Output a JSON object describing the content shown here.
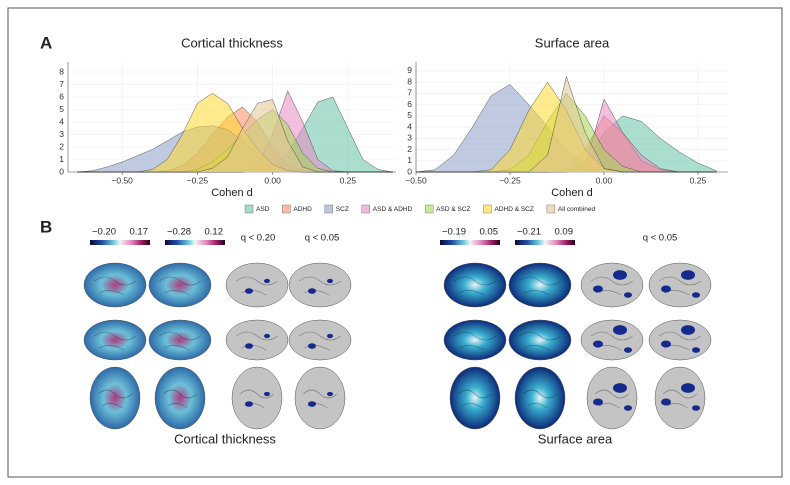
{
  "panel_labels": [
    "A",
    "B"
  ],
  "chart_data": [
    {
      "type": "area",
      "title": "Cortical thickness",
      "xlabel": "Cohen d",
      "x": [
        -0.65,
        -0.6,
        -0.55,
        -0.5,
        -0.45,
        -0.4,
        -0.35,
        -0.3,
        -0.25,
        -0.2,
        -0.15,
        -0.1,
        -0.05,
        0,
        0.05,
        0.1,
        0.15,
        0.2,
        0.25,
        0.3,
        0.35,
        0.4
      ],
      "xlim": [
        -0.68,
        0.41
      ],
      "xticks": [
        {
          "value": -0.5,
          "label": "−0.50"
        },
        {
          "value": -0.25,
          "label": "−0.25"
        },
        {
          "value": 0,
          "label": "0.00"
        },
        {
          "value": 0.25,
          "label": "0.25"
        }
      ],
      "ylim": [
        0,
        8.8
      ],
      "yticks": [
        0,
        1,
        2,
        3,
        4,
        5,
        6,
        7,
        8
      ],
      "grid": true,
      "series": [
        {
          "name": "ASD",
          "color": "#66c2a5",
          "values": [
            0,
            0,
            0,
            0,
            0,
            0,
            0,
            0,
            0,
            0,
            0,
            0,
            0.1,
            0.4,
            1.5,
            3.5,
            5.6,
            6.0,
            3.5,
            1.0,
            0.2,
            0
          ]
        },
        {
          "name": "ADHD",
          "color": "#fc8d62",
          "values": [
            0,
            0,
            0,
            0,
            0,
            0,
            0.1,
            0.5,
            1.5,
            3.0,
            4.4,
            5.2,
            4.0,
            2.0,
            0.5,
            0.1,
            0,
            0,
            0,
            0,
            0,
            0
          ]
        },
        {
          "name": "SCZ",
          "color": "#8da0cb",
          "values": [
            0,
            0.1,
            0.4,
            0.8,
            1.3,
            1.8,
            2.5,
            3.2,
            3.6,
            3.7,
            3.4,
            2.5,
            1.5,
            0.6,
            0.2,
            0,
            0,
            0,
            0,
            0,
            0,
            0
          ]
        },
        {
          "name": "ASD & ADHD",
          "color": "#e78ac3",
          "values": [
            0,
            0,
            0,
            0,
            0,
            0,
            0,
            0,
            0,
            0,
            0,
            0,
            0.5,
            3.0,
            6.5,
            4.0,
            1.0,
            0.1,
            0,
            0,
            0,
            0
          ]
        },
        {
          "name": "ASD & SCZ",
          "color": "#a6d854",
          "values": [
            0,
            0,
            0,
            0,
            0,
            0,
            0,
            0,
            0.2,
            0.8,
            1.8,
            3.0,
            4.2,
            5.0,
            3.8,
            1.5,
            0.3,
            0,
            0,
            0,
            0,
            0
          ]
        },
        {
          "name": "ADHD & SCZ",
          "color": "#ffd92f",
          "values": [
            0,
            0,
            0,
            0,
            0,
            0.2,
            1.0,
            3.0,
            5.5,
            6.3,
            5.5,
            3.5,
            1.8,
            0.6,
            0.1,
            0,
            0,
            0,
            0,
            0,
            0,
            0
          ]
        },
        {
          "name": "All combined",
          "color": "#e5c494",
          "values": [
            0,
            0,
            0,
            0,
            0,
            0,
            0,
            0,
            0,
            0.3,
            1.2,
            3.5,
            5.5,
            5.8,
            2.5,
            0.4,
            0,
            0,
            0,
            0,
            0,
            0
          ]
        }
      ]
    },
    {
      "type": "area",
      "title": "Surface area",
      "xlabel": "Cohen d",
      "x": [
        -0.5,
        -0.45,
        -0.4,
        -0.35,
        -0.3,
        -0.25,
        -0.2,
        -0.15,
        -0.1,
        -0.05,
        0,
        0.05,
        0.1,
        0.15,
        0.2,
        0.25,
        0.3
      ],
      "xlim": [
        -0.5,
        0.33
      ],
      "xticks": [
        {
          "value": -0.5,
          "label": "−0.50"
        },
        {
          "value": -0.25,
          "label": "−0.25"
        },
        {
          "value": 0,
          "label": "0.00"
        },
        {
          "value": 0.25,
          "label": "0.25"
        }
      ],
      "ylim": [
        0,
        9.8
      ],
      "yticks": [
        0,
        1,
        2,
        3,
        4,
        5,
        6,
        7,
        8,
        9
      ],
      "grid": true,
      "series": [
        {
          "color": "#66c2a5",
          "values": [
            0,
            0,
            0,
            0,
            0,
            0,
            0,
            0,
            0.1,
            0.8,
            3.5,
            5.0,
            4.5,
            3.0,
            1.8,
            0.8,
            0.1
          ]
        },
        {
          "color": "#fc8d62",
          "values": [
            0,
            0,
            0,
            0,
            0,
            0,
            0,
            0,
            0.2,
            2.0,
            5.0,
            3.5,
            1.0,
            0.2,
            0,
            0,
            0
          ]
        },
        {
          "color": "#8da0cb",
          "values": [
            0,
            0.2,
            1.5,
            4.0,
            6.8,
            7.8,
            6.0,
            4.0,
            2.0,
            0.6,
            0.1,
            0,
            0,
            0,
            0,
            0,
            0
          ]
        },
        {
          "color": "#e78ac3",
          "values": [
            0,
            0,
            0,
            0,
            0,
            0,
            0,
            0,
            0,
            0.5,
            6.5,
            3.5,
            1.5,
            0.3,
            0,
            0,
            0
          ]
        },
        {
          "color": "#a6d854",
          "values": [
            0,
            0,
            0,
            0,
            0,
            0.2,
            1.5,
            4.5,
            7.0,
            5.0,
            2.0,
            0.5,
            0,
            0,
            0,
            0,
            0
          ]
        },
        {
          "color": "#ffd92f",
          "values": [
            0,
            0,
            0,
            0,
            0.2,
            2.0,
            5.5,
            8.0,
            5.5,
            2.0,
            0.3,
            0,
            0,
            0,
            0,
            0,
            0
          ]
        },
        {
          "color": "#e5c494",
          "values": [
            0,
            0,
            0,
            0,
            0,
            0,
            0,
            1.5,
            8.5,
            3.5,
            0.3,
            0,
            0,
            0,
            0,
            0,
            0
          ]
        }
      ]
    }
  ],
  "panel_b": {
    "left": {
      "colorbars": [
        [
          "−0.20",
          "0.17"
        ],
        [
          "−0.28",
          "0.12"
        ]
      ],
      "q_labels": [
        "q < 0.20",
        "q < 0.05"
      ],
      "title": "Cortical thickness"
    },
    "right": {
      "colorbars": [
        [
          "−0.19",
          "0.05"
        ],
        [
          "−0.21",
          "0.09"
        ]
      ],
      "q_labels": [
        "q < 0.05"
      ],
      "title": "Surface area"
    }
  }
}
